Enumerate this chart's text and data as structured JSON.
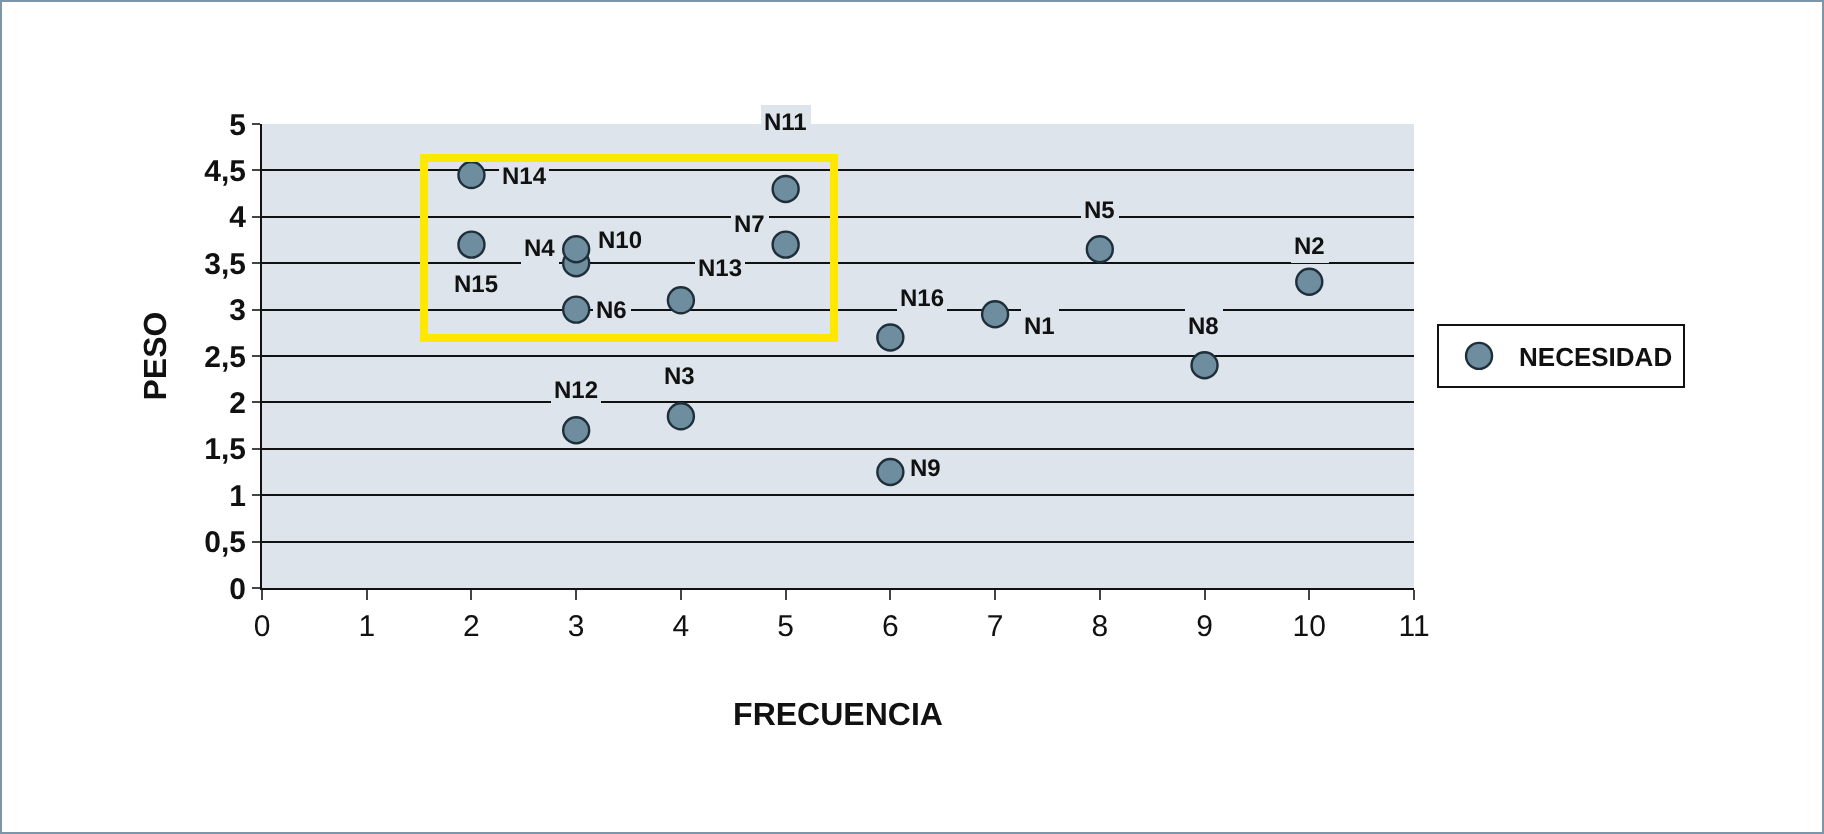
{
  "chart_data": {
    "type": "scatter",
    "xlabel": "FRECUENCIA",
    "ylabel": "PESO",
    "x": [
      7,
      10,
      4,
      3,
      8,
      3,
      5,
      9,
      6,
      3,
      5,
      3,
      4,
      2,
      2,
      6
    ],
    "series": [
      {
        "name": "NECESIDAD",
        "color": "#6e8ea0",
        "values": [
          2.95,
          3.3,
          1.85,
          3.5,
          3.65,
          3.0,
          3.7,
          2.4,
          1.25,
          3.65,
          4.3,
          1.7,
          3.1,
          4.45,
          3.7,
          2.7
        ]
      }
    ],
    "annotations": [
      {
        "text": "N1",
        "x": 7,
        "y": 2.95
      },
      {
        "text": "N2",
        "x": 10,
        "y": 3.3
      },
      {
        "text": "N3",
        "x": 4,
        "y": 1.85
      },
      {
        "text": "N4",
        "x": 3,
        "y": 3.5
      },
      {
        "text": "N5",
        "x": 8,
        "y": 3.65
      },
      {
        "text": "N6",
        "x": 3,
        "y": 3.0
      },
      {
        "text": "N7",
        "x": 5,
        "y": 3.7
      },
      {
        "text": "N8",
        "x": 9,
        "y": 2.4
      },
      {
        "text": "N9",
        "x": 6,
        "y": 1.25
      },
      {
        "text": "N10",
        "x": 3,
        "y": 3.65
      },
      {
        "text": "N11",
        "x": 5,
        "y": 4.3
      },
      {
        "text": "N12",
        "x": 3,
        "y": 1.7
      },
      {
        "text": "N13",
        "x": 4,
        "y": 3.1
      },
      {
        "text": "N14",
        "x": 2,
        "y": 4.45
      },
      {
        "text": "N15",
        "x": 2,
        "y": 3.7
      },
      {
        "text": "N16",
        "x": 6,
        "y": 2.7
      }
    ],
    "xlim": [
      0,
      11
    ],
    "xticks": [
      0,
      1,
      2,
      3,
      4,
      5,
      6,
      7,
      8,
      9,
      10,
      11
    ],
    "ylim": [
      0,
      5
    ],
    "yticks": [
      0,
      {
        "value": 0.5,
        "label": "0,5"
      },
      1,
      {
        "value": 1.5,
        "label": "1,5"
      },
      2,
      {
        "value": 2.5,
        "label": "2,5"
      },
      3,
      {
        "value": 3.5,
        "label": "3,5"
      },
      4,
      {
        "value": 4.5,
        "label": "4,5"
      },
      5
    ],
    "grid": "y",
    "legend": "right",
    "marker": "circle"
  }
}
